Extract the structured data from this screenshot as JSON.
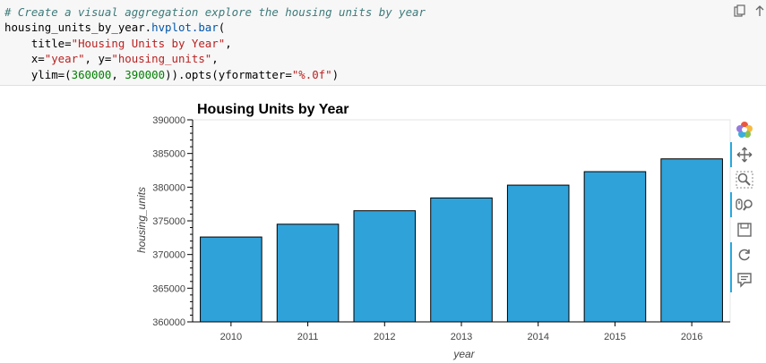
{
  "code_cell": {
    "comment": "# Create a visual aggregation explore the housing units by year",
    "line2_obj": "housing_units_by_year.",
    "line2_fn": "hvplot.bar",
    "line2_open": "(",
    "line3_pre": "    title=",
    "line3_str": "\"Housing Units by Year\"",
    "line3_post": ",",
    "line4_pre": "    x=",
    "line4_str1": "\"year\"",
    "line4_mid": ", y=",
    "line4_str2": "\"housing_units\"",
    "line4_post": ",",
    "line5_pre": "    ylim=(",
    "line5_num1": "360000",
    "line5_sep": ", ",
    "line5_num2": "390000",
    "line5_mid": ")).opts(yformatter=",
    "line5_str": "\"%.0f\"",
    "line5_post": ")"
  },
  "cell_icons": [
    "copy-icon",
    "arrow-up-icon"
  ],
  "toolbar": {
    "tools": [
      "bokeh-logo-icon",
      "pan-icon",
      "box-zoom-icon",
      "wheel-zoom-icon",
      "save-icon",
      "reset-icon",
      "hover-icon"
    ],
    "accent": "#26aae1"
  },
  "chart_data": {
    "type": "bar",
    "title": "Housing Units by Year",
    "xlabel": "year",
    "ylabel": "housing_units",
    "categories": [
      "2010",
      "2011",
      "2012",
      "2013",
      "2014",
      "2015",
      "2016"
    ],
    "values": [
      372600,
      374500,
      376500,
      378400,
      380300,
      382300,
      384200
    ],
    "ylim": [
      360000,
      390000
    ],
    "yticks": [
      "360000",
      "365000",
      "370000",
      "375000",
      "380000",
      "385000",
      "390000"
    ],
    "bar_color": "#30a2da",
    "grid": false
  }
}
